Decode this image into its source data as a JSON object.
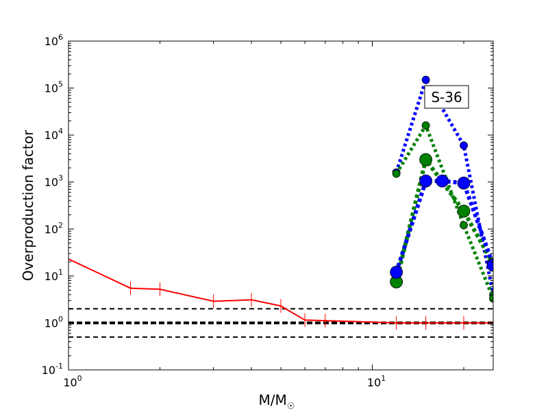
{
  "chart_data": {
    "type": "line",
    "xlabel": "M/M",
    "xlabel_subscript": "☉",
    "ylabel": "Overproduction factor",
    "xscale": "log",
    "yscale": "log",
    "xlim": [
      1,
      25
    ],
    "ylim": [
      0.1,
      1000000
    ],
    "grid": false,
    "annotation": "S-36",
    "x_ticks": [
      {
        "value": 1,
        "base": "10",
        "exp": "0"
      },
      {
        "value": 10,
        "base": "10",
        "exp": "1"
      }
    ],
    "y_ticks": [
      {
        "value": 0.1,
        "base": "10",
        "exp": "-1"
      },
      {
        "value": 1,
        "base": "10",
        "exp": "0"
      },
      {
        "value": 10,
        "base": "10",
        "exp": "1"
      },
      {
        "value": 100,
        "base": "10",
        "exp": "2"
      },
      {
        "value": 1000,
        "base": "10",
        "exp": "3"
      },
      {
        "value": 10000,
        "base": "10",
        "exp": "4"
      },
      {
        "value": 100000,
        "base": "10",
        "exp": "5"
      },
      {
        "value": 1000000,
        "base": "10",
        "exp": "6"
      }
    ],
    "reference_lines": [
      {
        "y": 2,
        "style": "dashed",
        "width": "thin"
      },
      {
        "y": 1,
        "style": "dashed",
        "width": "thick"
      },
      {
        "y": 0.5,
        "style": "dashed",
        "width": "thin"
      }
    ],
    "series": [
      {
        "style": "solid-with-vertical-markers",
        "color": "#ff0000",
        "x": [
          1,
          1.6,
          2,
          3,
          4,
          5,
          6,
          7,
          12,
          15,
          20,
          25
        ],
        "y": [
          23,
          5.5,
          5.2,
          2.9,
          3.1,
          2.3,
          1.15,
          1.12,
          1.0,
          1.0,
          1.0,
          1.0
        ]
      },
      {
        "style": "dotted-small-markers",
        "color": "#0000ff",
        "x": [
          12,
          15,
          20,
          25
        ],
        "y": [
          1600,
          150000,
          6000,
          4
        ]
      },
      {
        "style": "dotted-small-markers",
        "color": "#008000",
        "x": [
          12,
          15,
          20,
          25
        ],
        "y": [
          1500,
          16000,
          120,
          3.3
        ]
      },
      {
        "style": "dotted-large-markers",
        "color": "#008000",
        "x": [
          12,
          15,
          20,
          25
        ],
        "y": [
          7.5,
          3000,
          240,
          18
        ]
      },
      {
        "style": "dotted-large-markers",
        "color": "#0000ff",
        "x": [
          12,
          15,
          17,
          20,
          25
        ],
        "y": [
          12,
          1050,
          1050,
          950,
          17
        ]
      }
    ]
  }
}
